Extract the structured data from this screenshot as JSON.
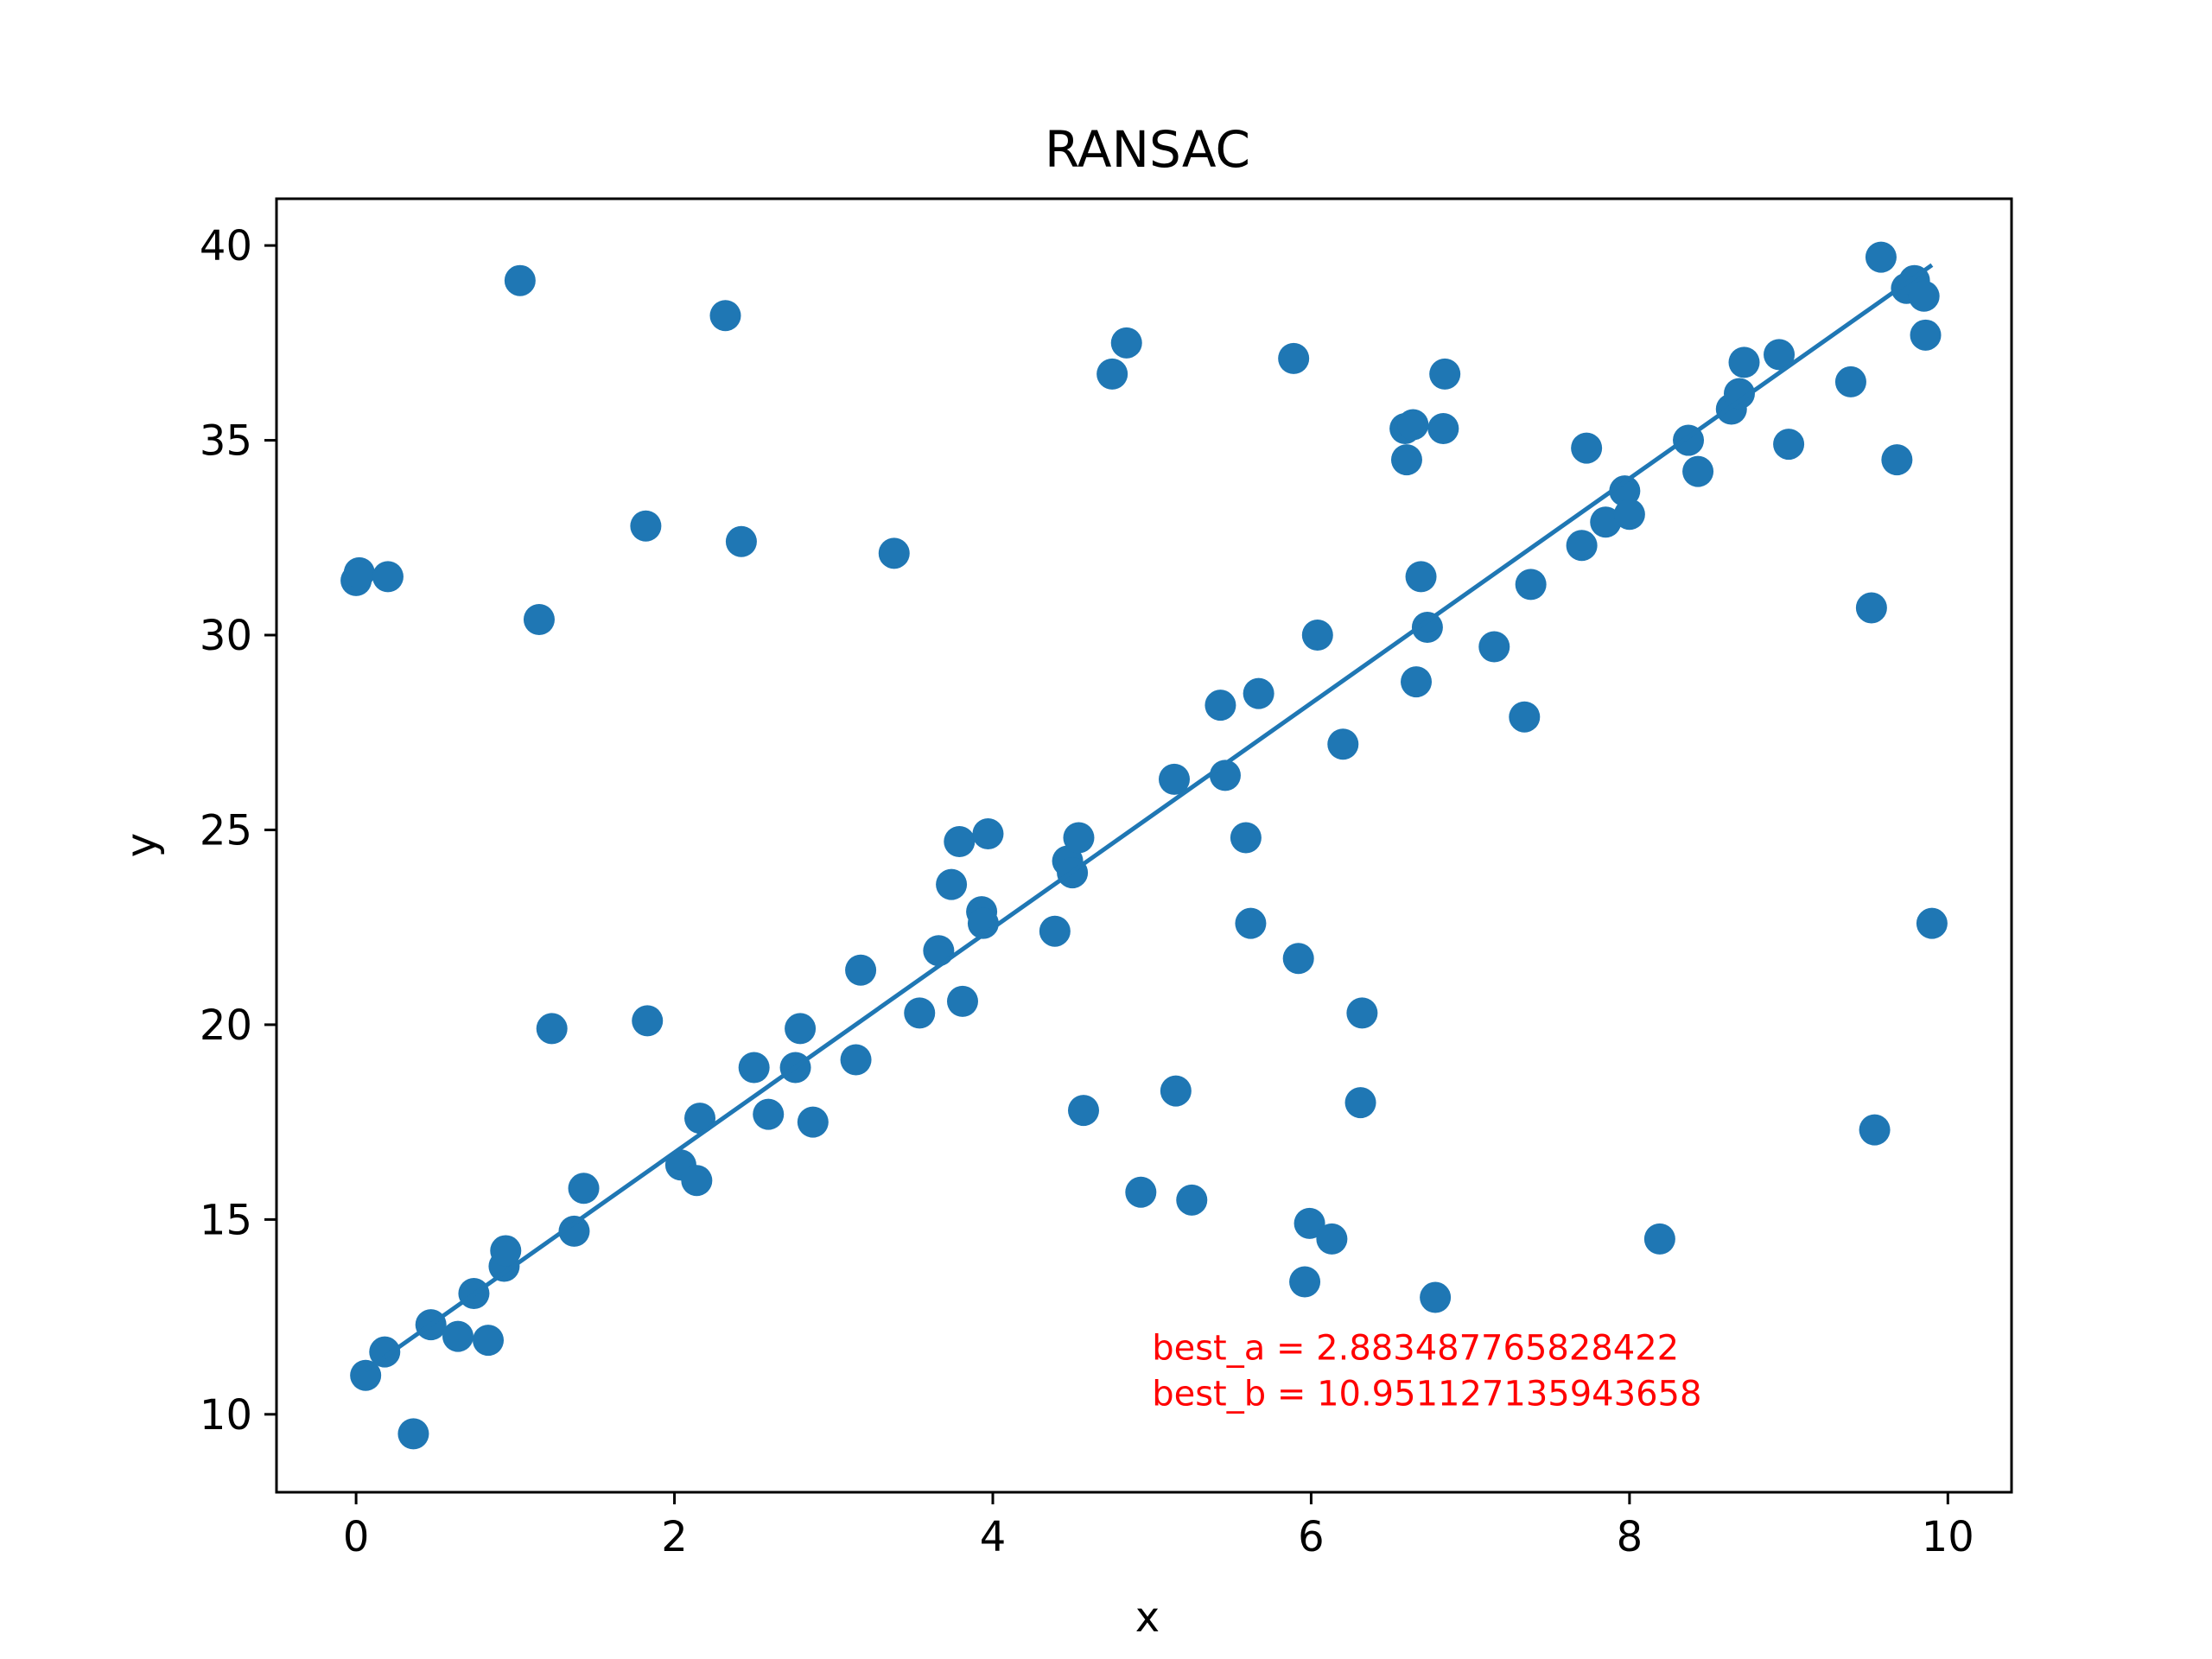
{
  "chart_data": {
    "type": "scatter",
    "title": "RANSAC",
    "xlabel": "x",
    "ylabel": "y",
    "xlim": [
      -0.5,
      10.4
    ],
    "ylim": [
      8.0,
      41.2
    ],
    "xticks": [
      0,
      2,
      4,
      6,
      8,
      10
    ],
    "yticks": [
      10,
      15,
      20,
      25,
      30,
      35,
      40
    ],
    "grid": false,
    "colors": {
      "points": "#1f77b4",
      "fit_line": "#1f77b4",
      "annotation": "#ff0000",
      "axes": "#000000"
    },
    "annotation_lines": [
      "best_a = 2.883487765828422",
      "best_b = 10.951127135943658"
    ],
    "annotation_anchor": [
      5.0,
      11.4
    ],
    "fit_line": {
      "slope": 2.883487765828422,
      "intercept": 10.951127135943658,
      "x_range": [
        0.06,
        9.9
      ]
    },
    "points": [
      {
        "x": 0.0,
        "y": 31.4
      },
      {
        "x": 0.02,
        "y": 31.6
      },
      {
        "x": 0.2,
        "y": 31.5
      },
      {
        "x": 0.06,
        "y": 11.0
      },
      {
        "x": 0.18,
        "y": 11.6
      },
      {
        "x": 0.36,
        "y": 9.5
      },
      {
        "x": 0.47,
        "y": 12.3
      },
      {
        "x": 0.64,
        "y": 12.0
      },
      {
        "x": 0.74,
        "y": 13.1
      },
      {
        "x": 0.83,
        "y": 11.9
      },
      {
        "x": 0.93,
        "y": 13.8
      },
      {
        "x": 0.94,
        "y": 14.2
      },
      {
        "x": 1.03,
        "y": 39.1
      },
      {
        "x": 1.15,
        "y": 30.4
      },
      {
        "x": 1.23,
        "y": 19.9
      },
      {
        "x": 1.37,
        "y": 14.7
      },
      {
        "x": 1.43,
        "y": 15.8
      },
      {
        "x": 1.82,
        "y": 32.8
      },
      {
        "x": 1.83,
        "y": 20.1
      },
      {
        "x": 2.04,
        "y": 16.4
      },
      {
        "x": 2.14,
        "y": 16.0
      },
      {
        "x": 2.16,
        "y": 17.6
      },
      {
        "x": 2.32,
        "y": 38.2
      },
      {
        "x": 2.42,
        "y": 32.4
      },
      {
        "x": 2.5,
        "y": 18.9
      },
      {
        "x": 2.59,
        "y": 17.7
      },
      {
        "x": 2.76,
        "y": 18.9
      },
      {
        "x": 2.79,
        "y": 19.9
      },
      {
        "x": 2.87,
        "y": 17.5
      },
      {
        "x": 3.14,
        "y": 19.1
      },
      {
        "x": 3.17,
        "y": 21.4
      },
      {
        "x": 3.38,
        "y": 32.1
      },
      {
        "x": 3.54,
        "y": 20.3
      },
      {
        "x": 3.66,
        "y": 21.9
      },
      {
        "x": 3.74,
        "y": 23.6
      },
      {
        "x": 3.79,
        "y": 24.7
      },
      {
        "x": 3.81,
        "y": 20.6
      },
      {
        "x": 3.93,
        "y": 22.9
      },
      {
        "x": 3.94,
        "y": 22.6
      },
      {
        "x": 3.97,
        "y": 24.9
      },
      {
        "x": 4.39,
        "y": 22.4
      },
      {
        "x": 4.47,
        "y": 24.2
      },
      {
        "x": 4.5,
        "y": 23.9
      },
      {
        "x": 4.54,
        "y": 24.8
      },
      {
        "x": 4.57,
        "y": 17.8
      },
      {
        "x": 4.75,
        "y": 36.7
      },
      {
        "x": 4.84,
        "y": 37.5
      },
      {
        "x": 4.93,
        "y": 15.7
      },
      {
        "x": 5.14,
        "y": 26.3
      },
      {
        "x": 5.15,
        "y": 18.3
      },
      {
        "x": 5.25,
        "y": 15.5
      },
      {
        "x": 5.43,
        "y": 28.2
      },
      {
        "x": 5.46,
        "y": 26.4
      },
      {
        "x": 5.59,
        "y": 24.8
      },
      {
        "x": 5.62,
        "y": 22.6
      },
      {
        "x": 5.67,
        "y": 28.5
      },
      {
        "x": 5.89,
        "y": 37.1
      },
      {
        "x": 5.92,
        "y": 21.7
      },
      {
        "x": 5.96,
        "y": 13.4
      },
      {
        "x": 5.99,
        "y": 14.9
      },
      {
        "x": 6.04,
        "y": 30.0
      },
      {
        "x": 6.13,
        "y": 14.5
      },
      {
        "x": 6.2,
        "y": 27.2
      },
      {
        "x": 6.31,
        "y": 18.0
      },
      {
        "x": 6.32,
        "y": 20.3
      },
      {
        "x": 6.59,
        "y": 35.3
      },
      {
        "x": 6.6,
        "y": 34.5
      },
      {
        "x": 6.64,
        "y": 35.4
      },
      {
        "x": 6.66,
        "y": 28.8
      },
      {
        "x": 6.69,
        "y": 31.5
      },
      {
        "x": 6.73,
        "y": 30.2
      },
      {
        "x": 6.78,
        "y": 13.0
      },
      {
        "x": 6.83,
        "y": 35.3
      },
      {
        "x": 6.84,
        "y": 36.7
      },
      {
        "x": 7.15,
        "y": 29.7
      },
      {
        "x": 7.34,
        "y": 27.9
      },
      {
        "x": 7.38,
        "y": 31.3
      },
      {
        "x": 7.7,
        "y": 32.3
      },
      {
        "x": 7.73,
        "y": 34.8
      },
      {
        "x": 7.85,
        "y": 32.9
      },
      {
        "x": 7.97,
        "y": 33.7
      },
      {
        "x": 8.0,
        "y": 33.1
      },
      {
        "x": 8.19,
        "y": 14.5
      },
      {
        "x": 8.37,
        "y": 35.0
      },
      {
        "x": 8.43,
        "y": 34.2
      },
      {
        "x": 8.64,
        "y": 35.8
      },
      {
        "x": 8.69,
        "y": 36.2
      },
      {
        "x": 8.72,
        "y": 37.0
      },
      {
        "x": 8.94,
        "y": 37.2
      },
      {
        "x": 9.0,
        "y": 34.9
      },
      {
        "x": 9.39,
        "y": 36.5
      },
      {
        "x": 9.52,
        "y": 30.7
      },
      {
        "x": 9.54,
        "y": 17.3
      },
      {
        "x": 9.58,
        "y": 39.7
      },
      {
        "x": 9.68,
        "y": 34.5
      },
      {
        "x": 9.74,
        "y": 38.9
      },
      {
        "x": 9.79,
        "y": 39.1
      },
      {
        "x": 9.85,
        "y": 38.7
      },
      {
        "x": 9.86,
        "y": 37.7
      },
      {
        "x": 9.9,
        "y": 22.6
      }
    ]
  }
}
